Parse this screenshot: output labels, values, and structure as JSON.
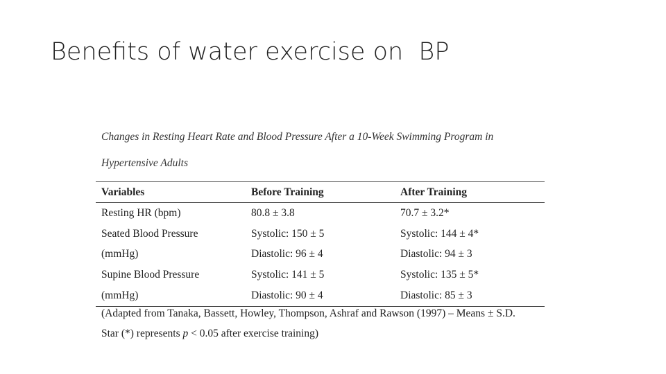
{
  "title": "Benefits of water exercise on  BP",
  "caption": {
    "line1": "Changes in Resting Heart Rate and Blood Pressure After a 10-Week Swimming Program in",
    "line2": "Hypertensive Adults"
  },
  "table": {
    "headers": [
      "Variables",
      "Before Training",
      "After Training"
    ],
    "rows": [
      [
        "Resting HR (bpm)",
        "80.8 ± 3.8",
        "70.7 ± 3.2*"
      ],
      [
        "Seated Blood Pressure",
        "Systolic: 150 ± 5",
        "Systolic: 144 ± 4*"
      ],
      [
        "(mmHg)",
        "Diastolic: 96 ± 4",
        "Diastolic: 94 ± 3"
      ],
      [
        "Supine Blood Pressure",
        "Systolic: 141 ± 5",
        "Systolic: 135 ± 5*"
      ],
      [
        "(mmHg)",
        "Diastolic: 90 ± 4",
        "Diastolic: 85 ± 3"
      ]
    ]
  },
  "footnote": {
    "line1": "(Adapted from Tanaka, Bassett, Howley, Thompson, Ashraf and Rawson (1997) – Means ± S.D.",
    "line2_prefix": "Star (*) represents ",
    "line2_p": "p",
    "line2_suffix": " < 0.05 after exercise training)"
  }
}
